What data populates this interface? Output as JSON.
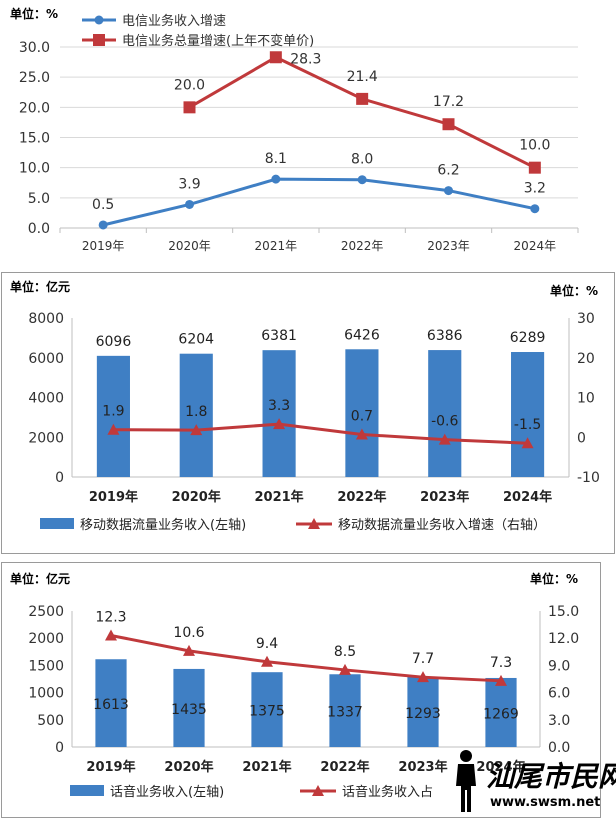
{
  "chart_data": [
    {
      "type": "line",
      "unit_label": "单位：%",
      "categories": [
        "2019年",
        "2020年",
        "2021年",
        "2022年",
        "2023年",
        "2024年"
      ],
      "ylim": [
        0,
        30
      ],
      "yticks": [
        "0.0",
        "5.0",
        "10.0",
        "15.0",
        "20.0",
        "25.0",
        "30.0"
      ],
      "grid": true,
      "legend": "top-left",
      "series": [
        {
          "name": "电信业务收入增速",
          "color": "#3f7fc4",
          "marker": "circle",
          "values": [
            0.5,
            3.9,
            8.1,
            8.0,
            6.2,
            3.2
          ],
          "labels": [
            "0.5",
            "3.9",
            "8.1",
            "8.0",
            "6.2",
            "3.2"
          ]
        },
        {
          "name": "电信业务总量增速(上年不变单价)",
          "color": "#c0393b",
          "marker": "square",
          "values": [
            null,
            20.0,
            28.3,
            21.4,
            17.2,
            10.0
          ],
          "labels": [
            "",
            "20.0",
            "28.3",
            "21.4",
            "17.2",
            "10.0"
          ]
        }
      ]
    },
    {
      "type": "bar",
      "unit_left": "单位：亿元",
      "unit_right": "单位：%",
      "categories": [
        "2019年",
        "2020年",
        "2021年",
        "2022年",
        "2023年",
        "2024年"
      ],
      "ylim": [
        0,
        8000
      ],
      "yticks": [
        "0",
        "2000",
        "4000",
        "6000",
        "8000"
      ],
      "y2lim": [
        -10,
        30
      ],
      "y2ticks": [
        "-10",
        "0",
        "10",
        "20",
        "30"
      ],
      "legend": "bottom",
      "series": [
        {
          "name": "移动数据流量业务收入(左轴)",
          "color": "#3f7fc4",
          "kind": "bar",
          "values": [
            6096,
            6204,
            6381,
            6426,
            6386,
            6289
          ],
          "labels": [
            "6096",
            "6204",
            "6381",
            "6426",
            "6386",
            "6289"
          ]
        },
        {
          "name": "移动数据流量业务收入增速（右轴）",
          "color": "#c0393b",
          "kind": "line",
          "marker": "triangle",
          "values": [
            1.9,
            1.8,
            3.3,
            0.7,
            -0.6,
            -1.5
          ],
          "labels": [
            "1.9",
            "1.8",
            "3.3",
            "0.7",
            "-0.6",
            "-1.5"
          ]
        }
      ]
    },
    {
      "type": "bar",
      "unit_left": "单位：亿元",
      "unit_right": "单位：%",
      "categories": [
        "2019年",
        "2020年",
        "2021年",
        "2022年",
        "2023年",
        "2024年"
      ],
      "ylim": [
        0,
        2500
      ],
      "yticks": [
        "0",
        "500",
        "1000",
        "1500",
        "2000",
        "2500"
      ],
      "y2lim": [
        0,
        15
      ],
      "y2ticks": [
        "0.0",
        "3.0",
        "6.0",
        "9.0",
        "12.0",
        "15.0"
      ],
      "legend": "bottom",
      "series": [
        {
          "name": "话音业务收入(左轴)",
          "color": "#3f7fc4",
          "kind": "bar",
          "values": [
            1613,
            1435,
            1375,
            1337,
            1293,
            1269
          ],
          "labels": [
            "1613",
            "1435",
            "1375",
            "1337",
            "1293",
            "1269"
          ]
        },
        {
          "name": "话音业务收入占",
          "color": "#c0393b",
          "kind": "line",
          "marker": "triangle",
          "values": [
            12.3,
            10.6,
            9.4,
            8.5,
            7.7,
            7.3
          ],
          "labels": [
            "12.3",
            "10.6",
            "9.4",
            "8.5",
            "7.7",
            "7.3"
          ]
        }
      ]
    }
  ],
  "watermark": {
    "name": "汕尾市民网",
    "url": "www.swsm.net",
    "icon": "person-silhouette-icon"
  }
}
